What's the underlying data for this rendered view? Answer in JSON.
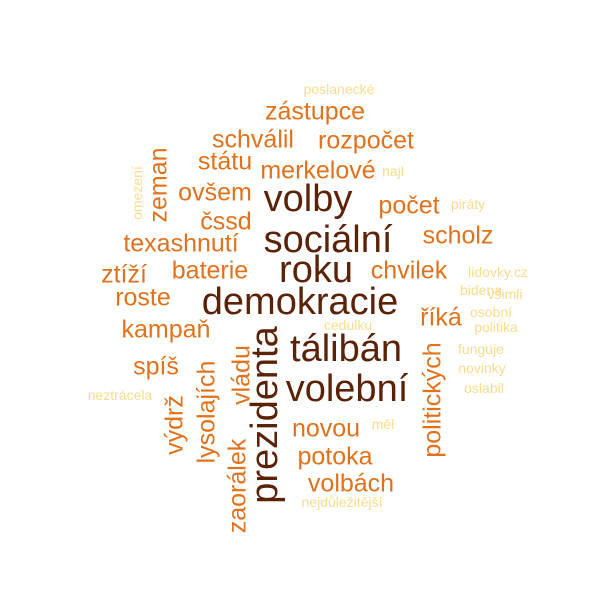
{
  "colors": {
    "dark": "#5a2308",
    "mid": "#e0721e",
    "light": "#f6dc8e"
  },
  "words": [
    {
      "text": "poslanecké",
      "tier": "light"
    },
    {
      "text": "zástupce",
      "tier": "mid"
    },
    {
      "text": "schválil",
      "tier": "mid"
    },
    {
      "text": "rozpočet",
      "tier": "mid"
    },
    {
      "text": "státu",
      "tier": "mid"
    },
    {
      "text": "merkelové",
      "tier": "mid"
    },
    {
      "text": "najl",
      "tier": "light"
    },
    {
      "text": "ovšem",
      "tier": "mid"
    },
    {
      "text": "volby",
      "tier": "dark"
    },
    {
      "text": "počet",
      "tier": "mid"
    },
    {
      "text": "piráty",
      "tier": "light"
    },
    {
      "text": "čssd",
      "tier": "mid"
    },
    {
      "text": "scholz",
      "tier": "mid"
    },
    {
      "text": "texashnutí",
      "tier": "mid"
    },
    {
      "text": "sociální",
      "tier": "dark"
    },
    {
      "text": "ztíží",
      "tier": "mid"
    },
    {
      "text": "baterie",
      "tier": "mid"
    },
    {
      "text": "roku",
      "tier": "dark"
    },
    {
      "text": "chvilek",
      "tier": "mid"
    },
    {
      "text": "lidovky.cz",
      "tier": "light"
    },
    {
      "text": "bidena",
      "tier": "light"
    },
    {
      "text": "všimli",
      "tier": "light"
    },
    {
      "text": "roste",
      "tier": "mid"
    },
    {
      "text": "demokracie",
      "tier": "dark"
    },
    {
      "text": "osobní",
      "tier": "light"
    },
    {
      "text": "říká",
      "tier": "mid"
    },
    {
      "text": "politika",
      "tier": "light"
    },
    {
      "text": "kampaň",
      "tier": "mid"
    },
    {
      "text": "cedulku",
      "tier": "light"
    },
    {
      "text": "tálibán",
      "tier": "dark"
    },
    {
      "text": "funguje",
      "tier": "light"
    },
    {
      "text": "spíš",
      "tier": "mid"
    },
    {
      "text": "novinky",
      "tier": "light"
    },
    {
      "text": "neztrácela",
      "tier": "light"
    },
    {
      "text": "volební",
      "tier": "dark"
    },
    {
      "text": "oslabil",
      "tier": "light"
    },
    {
      "text": "novou",
      "tier": "mid"
    },
    {
      "text": "měl",
      "tier": "light"
    },
    {
      "text": "potoka",
      "tier": "mid"
    },
    {
      "text": "volbách",
      "tier": "mid"
    },
    {
      "text": "nejdůležitější",
      "tier": "light"
    },
    {
      "text": "zeman",
      "tier": "mid"
    },
    {
      "text": "omezení",
      "tier": "light"
    },
    {
      "text": "prezidenta",
      "tier": "dark"
    },
    {
      "text": "vládu",
      "tier": "mid"
    },
    {
      "text": "lysolajích",
      "tier": "mid"
    },
    {
      "text": "výdrž",
      "tier": "mid"
    },
    {
      "text": "zaorálek",
      "tier": "mid"
    },
    {
      "text": "politických",
      "tier": "mid"
    }
  ]
}
